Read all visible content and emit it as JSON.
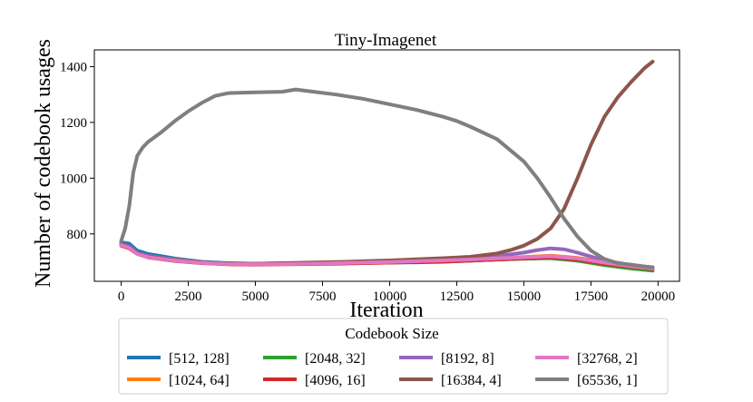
{
  "chart_data": {
    "type": "line",
    "title": "Tiny-Imagenet",
    "xlabel": "Iteration",
    "ylabel": "Number of codebook usages",
    "xlim": [
      -1000,
      20800
    ],
    "ylim": [
      630,
      1460
    ],
    "xticks": [
      0,
      2500,
      5000,
      7500,
      10000,
      12500,
      15000,
      17500,
      20000
    ],
    "yticks": [
      800,
      1000,
      1200,
      1400
    ],
    "grid": false,
    "legend": {
      "title": "Codebook Size",
      "placement": "bottom",
      "columns": 4
    },
    "series": [
      {
        "name": "[512, 128]",
        "color": "#1f77b4",
        "x": [
          0,
          300,
          600,
          1000,
          2000,
          3000,
          4000,
          5000,
          6000,
          7000,
          8000,
          9000,
          10000,
          11000,
          12000,
          13000,
          14000,
          15000,
          16000,
          17000,
          18000,
          19000,
          19800
        ],
        "y": [
          770,
          765,
          740,
          728,
          712,
          700,
          695,
          693,
          694,
          694,
          695,
          696,
          697,
          698,
          700,
          704,
          708,
          712,
          714,
          708,
          695,
          683,
          675
        ]
      },
      {
        "name": "[1024, 64]",
        "color": "#ff7f0e",
        "x": [
          0,
          300,
          600,
          1000,
          2000,
          3000,
          4000,
          5000,
          6000,
          7000,
          8000,
          9000,
          10000,
          11000,
          12000,
          13000,
          14000,
          15000,
          16000,
          17000,
          18000,
          19000,
          19800
        ],
        "y": [
          760,
          750,
          730,
          720,
          708,
          698,
          693,
          692,
          693,
          694,
          695,
          697,
          699,
          701,
          703,
          707,
          712,
          717,
          722,
          714,
          700,
          688,
          680
        ]
      },
      {
        "name": "[2048, 32]",
        "color": "#2ca02c",
        "x": [
          0,
          300,
          600,
          1000,
          2000,
          3000,
          4000,
          5000,
          6000,
          7000,
          8000,
          9000,
          10000,
          11000,
          12000,
          13000,
          14000,
          15000,
          16000,
          17000,
          18000,
          19000,
          19800
        ],
        "y": [
          762,
          752,
          730,
          718,
          705,
          697,
          692,
          691,
          692,
          693,
          694,
          696,
          698,
          700,
          702,
          705,
          708,
          711,
          713,
          704,
          688,
          676,
          668
        ]
      },
      {
        "name": "[4096, 16]",
        "color": "#d62728",
        "x": [
          0,
          300,
          600,
          1000,
          2000,
          3000,
          4000,
          5000,
          6000,
          7000,
          8000,
          9000,
          10000,
          11000,
          12000,
          13000,
          14000,
          15000,
          16000,
          17000,
          18000,
          19000,
          19800
        ],
        "y": [
          758,
          748,
          728,
          716,
          703,
          695,
          691,
          690,
          691,
          692,
          693,
          695,
          697,
          699,
          701,
          704,
          708,
          712,
          716,
          708,
          693,
          682,
          674
        ]
      },
      {
        "name": "[8192, 8]",
        "color": "#9467bd",
        "x": [
          0,
          300,
          600,
          1000,
          2000,
          3000,
          4000,
          5000,
          6000,
          7000,
          8000,
          9000,
          10000,
          11000,
          12000,
          13000,
          14000,
          15000,
          15500,
          16000,
          16500,
          17000,
          18000,
          19000,
          19800
        ],
        "y": [
          765,
          755,
          733,
          721,
          707,
          698,
          693,
          692,
          693,
          694,
          696,
          698,
          700,
          703,
          707,
          712,
          720,
          733,
          742,
          748,
          745,
          733,
          705,
          688,
          680
        ]
      },
      {
        "name": "[16384, 4]",
        "color": "#8c564b",
        "x": [
          0,
          300,
          600,
          1000,
          2000,
          3000,
          4000,
          5000,
          6000,
          7000,
          8000,
          9000,
          10000,
          11000,
          12000,
          13000,
          14000,
          14500,
          15000,
          15500,
          16000,
          16500,
          17000,
          17500,
          18000,
          18500,
          19000,
          19500,
          19800
        ],
        "y": [
          762,
          752,
          730,
          718,
          705,
          697,
          693,
          693,
          695,
          697,
          699,
          702,
          705,
          709,
          713,
          718,
          730,
          742,
          758,
          782,
          820,
          890,
          1000,
          1120,
          1220,
          1290,
          1345,
          1395,
          1418
        ]
      },
      {
        "name": "[32768, 2]",
        "color": "#e377c2",
        "x": [
          0,
          300,
          600,
          1000,
          2000,
          3000,
          4000,
          5000,
          6000,
          7000,
          8000,
          9000,
          10000,
          11000,
          12000,
          13000,
          14000,
          15000,
          16000,
          17000,
          18000,
          19000,
          19800
        ],
        "y": [
          760,
          750,
          728,
          717,
          704,
          696,
          692,
          691,
          692,
          693,
          695,
          697,
          699,
          702,
          705,
          708,
          712,
          716,
          720,
          712,
          697,
          684,
          676
        ]
      },
      {
        "name": "[65536, 1]",
        "color": "#7f7f7f",
        "x": [
          0,
          150,
          300,
          450,
          600,
          800,
          1000,
          1500,
          2000,
          2500,
          3000,
          3500,
          4000,
          5000,
          6000,
          6500,
          7000,
          8000,
          9000,
          10000,
          11000,
          12000,
          12500,
          13000,
          14000,
          15000,
          15500,
          16000,
          16500,
          17000,
          17500,
          18000,
          18500,
          19000,
          19500,
          19800
        ],
        "y": [
          775,
          820,
          900,
          1020,
          1080,
          1110,
          1130,
          1165,
          1205,
          1240,
          1270,
          1295,
          1305,
          1308,
          1310,
          1318,
          1312,
          1300,
          1285,
          1265,
          1245,
          1220,
          1205,
          1185,
          1140,
          1060,
          1000,
          930,
          855,
          790,
          740,
          710,
          695,
          690,
          683,
          680
        ]
      }
    ]
  }
}
